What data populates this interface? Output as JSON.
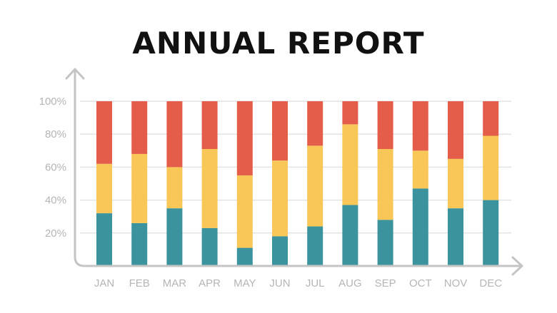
{
  "chart_data": {
    "type": "bar",
    "stacked": true,
    "title": "ANNUAL REPORT",
    "categories": [
      "JAN",
      "FEB",
      "MAR",
      "APR",
      "MAY",
      "JUN",
      "JUL",
      "AUG",
      "SEP",
      "OCT",
      "NOV",
      "DEC"
    ],
    "series": [
      {
        "color": "#3b939e",
        "values": [
          32,
          26,
          35,
          23,
          11,
          18,
          24,
          37,
          28,
          47,
          35,
          40
        ]
      },
      {
        "color": "#f9c757",
        "values": [
          30,
          42,
          25,
          48,
          44,
          46,
          49,
          49,
          43,
          23,
          30,
          39
        ]
      },
      {
        "color": "#e45c4a",
        "values": [
          38,
          32,
          40,
          29,
          45,
          36,
          27,
          14,
          29,
          30,
          35,
          21
        ]
      }
    ],
    "y_ticks": [
      "20%",
      "40%",
      "60%",
      "80%",
      "100%"
    ],
    "y_tick_values": [
      20,
      40,
      60,
      80,
      100
    ],
    "ylim": [
      0,
      100
    ],
    "grid": true,
    "xlabel": "",
    "ylabel": ""
  }
}
